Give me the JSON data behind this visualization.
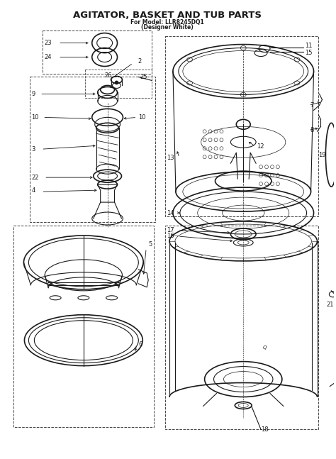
{
  "title": "AGITATOR, BASKET AND TUB PARTS",
  "subtitle1": "For Model: LLR8245DQ1",
  "subtitle2": "(Designer White)",
  "bg_color": "#ffffff",
  "line_color": "#1a1a1a",
  "fig_width": 4.74,
  "fig_height": 6.47,
  "dpi": 100,
  "title_fontsize": 9.5,
  "subtitle_fontsize": 5.5,
  "label_fontsize": 6.0
}
